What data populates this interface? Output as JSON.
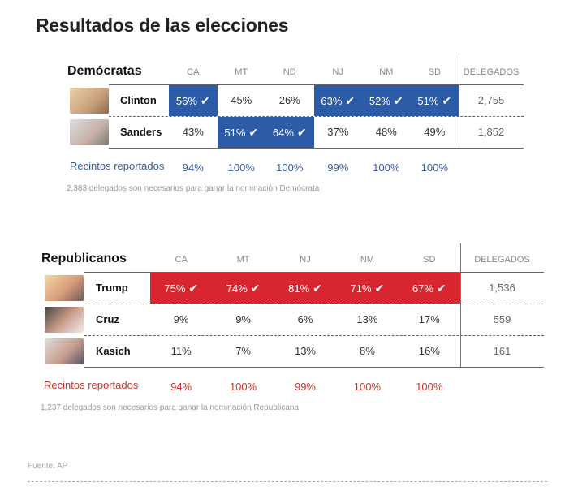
{
  "title": "Resultados de las elecciones",
  "colors": {
    "dem": "#2c5ba8",
    "rep": "#d82630",
    "dem_text": "#3a5a96",
    "rep_text": "#c0392b"
  },
  "democrats": {
    "party": "Demócratas",
    "states": [
      "CA",
      "MT",
      "ND",
      "NJ",
      "NM",
      "SD"
    ],
    "delegates_header": "DELEGADOS",
    "candidates": [
      {
        "name": "Clinton",
        "photo": "clinton-photo",
        "results": [
          "56%",
          "45%",
          "26%",
          "63%",
          "52%",
          "51%"
        ],
        "wins": [
          true,
          false,
          false,
          true,
          true,
          true
        ],
        "delegates": "2,755"
      },
      {
        "name": "Sanders",
        "photo": "sanders-photo",
        "results": [
          "43%",
          "51%",
          "64%",
          "37%",
          "48%",
          "49%"
        ],
        "wins": [
          false,
          true,
          true,
          false,
          false,
          false
        ],
        "delegates": "1,852"
      }
    ],
    "precincts_label": "Recintos reportados",
    "precincts": [
      "94%",
      "100%",
      "100%",
      "99%",
      "100%",
      "100%"
    ],
    "note": "2,383 delegados son necesarios para ganar la nominación Demócrata"
  },
  "republicans": {
    "party": "Republicanos",
    "states": [
      "CA",
      "MT",
      "NJ",
      "NM",
      "SD"
    ],
    "delegates_header": "DELEGADOS",
    "candidates": [
      {
        "name": "Trump",
        "photo": "trump-photo",
        "results": [
          "75%",
          "74%",
          "81%",
          "71%",
          "67%"
        ],
        "wins": [
          true,
          true,
          true,
          true,
          true
        ],
        "delegates": "1,536"
      },
      {
        "name": "Cruz",
        "photo": "cruz-photo",
        "results": [
          "9%",
          "9%",
          "6%",
          "13%",
          "17%"
        ],
        "wins": [
          false,
          false,
          false,
          false,
          false
        ],
        "delegates": "559"
      },
      {
        "name": "Kasich",
        "photo": "kasich-photo",
        "results": [
          "11%",
          "7%",
          "13%",
          "8%",
          "16%"
        ],
        "wins": [
          false,
          false,
          false,
          false,
          false
        ],
        "delegates": "161"
      }
    ],
    "precincts_label": "Recintos reportados",
    "precincts": [
      "94%",
      "100%",
      "99%",
      "100%",
      "100%"
    ],
    "note": "1,237 delegados son necesarios para ganar la nominación Republicana"
  },
  "source": "Fuente: AP"
}
